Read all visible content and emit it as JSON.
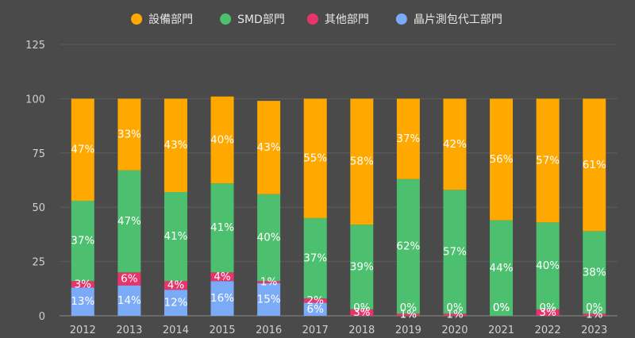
{
  "chart_data": {
    "type": "bar",
    "stacked": true,
    "categories": [
      "2012",
      "2013",
      "2014",
      "2015",
      "2016",
      "2017",
      "2018",
      "2019",
      "2020",
      "2021",
      "2022",
      "2023"
    ],
    "ylim": [
      0,
      125
    ],
    "yticks": [
      0,
      25,
      50,
      75,
      100,
      125
    ],
    "legend_position": "top",
    "grid": true,
    "series": [
      {
        "name": "晶片測包代工部門",
        "color": "#7baaf7",
        "values": [
          13,
          14,
          12,
          16,
          15,
          6,
          0,
          0,
          0,
          0,
          0,
          0
        ],
        "labels": [
          "13%",
          "14%",
          "12%",
          "16%",
          "15%",
          "6%",
          "0%",
          "0%",
          "0%",
          "0%",
          "0%",
          "0%"
        ]
      },
      {
        "name": "其他部門",
        "color": "#e8336b",
        "values": [
          3,
          6,
          4,
          4,
          1,
          2,
          3,
          1,
          1,
          0,
          3,
          1
        ],
        "labels": [
          "3%",
          "6%",
          "4%",
          "4%",
          "1%",
          "2%",
          "3%",
          "1%",
          "1%",
          "0%",
          "3%",
          "1%"
        ]
      },
      {
        "name": "SMD部門",
        "color": "#4cc06e",
        "values": [
          37,
          47,
          41,
          41,
          40,
          37,
          39,
          62,
          57,
          44,
          40,
          38
        ],
        "labels": [
          "37%",
          "47%",
          "41%",
          "41%",
          "40%",
          "37%",
          "39%",
          "62%",
          "57%",
          "44%",
          "40%",
          "38%"
        ]
      },
      {
        "name": "設備部門",
        "color": "#ffa800",
        "values": [
          47,
          33,
          43,
          40,
          43,
          55,
          58,
          37,
          42,
          56,
          57,
          61
        ],
        "labels": [
          "47%",
          "33%",
          "43%",
          "40%",
          "43%",
          "55%",
          "58%",
          "37%",
          "42%",
          "56%",
          "57%",
          "61%"
        ]
      }
    ],
    "legend_order": [
      3,
      2,
      1,
      0
    ]
  }
}
